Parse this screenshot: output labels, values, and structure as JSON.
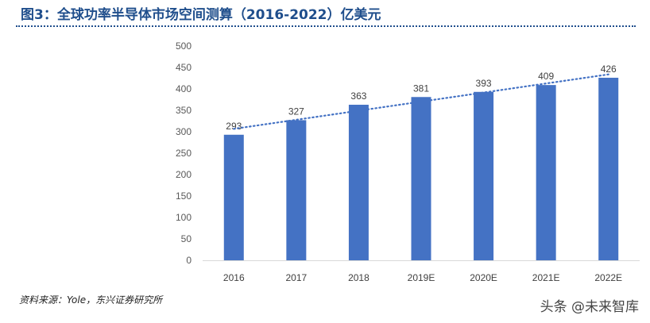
{
  "title": "图3：全球功率半导体市场空间测算（2016-2022）亿美元",
  "source": "资料来源：Yole，东兴证券研究所",
  "watermark": "头条 @未来智库",
  "chart_data": {
    "type": "bar",
    "categories": [
      "2016",
      "2017",
      "2018",
      "2019E",
      "2020E",
      "2021E",
      "2022E"
    ],
    "values": [
      293,
      327,
      363,
      381,
      393,
      409,
      426
    ],
    "ylim": [
      0,
      500
    ],
    "yticks": [
      0,
      50,
      100,
      150,
      200,
      250,
      300,
      350,
      400,
      450,
      500
    ],
    "trendline": "linear dotted",
    "grid": false,
    "bar_color": "#4472c4",
    "trend_color": "#4472c4"
  }
}
